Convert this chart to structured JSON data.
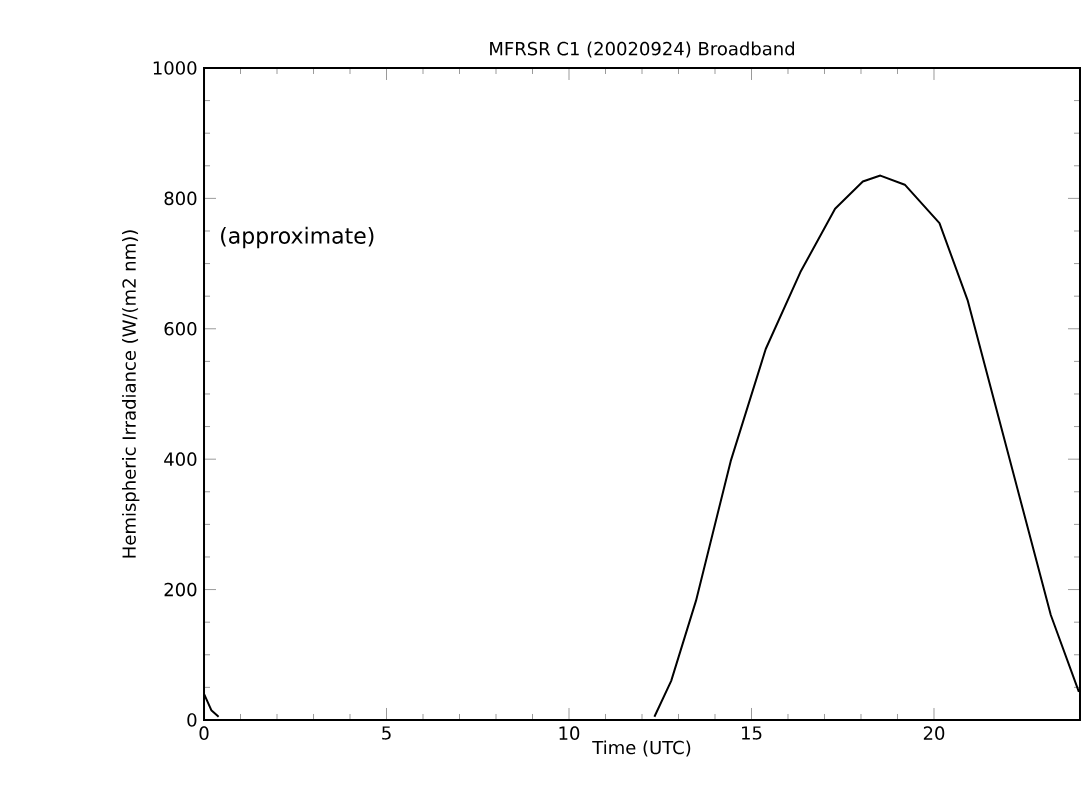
{
  "chart_data": {
    "type": "line",
    "title": "MFRSR C1 (20020924) Broadband",
    "xlabel": "Time (UTC)",
    "ylabel": "Hemispheric Irradiance (W/(m2 nm))",
    "annotations": [
      "(approximate)"
    ],
    "series": [
      {
        "color": "#000000",
        "x": [
          0,
          0.2,
          0.4,
          6,
          12.34,
          12.8,
          13.48,
          14.43,
          15.39,
          16.34,
          17.29,
          18.05,
          18.53,
          19.2,
          20.15,
          20.92,
          21.68,
          22.44,
          23.2,
          23.97
        ],
        "values": [
          40,
          15,
          5,
          null,
          5,
          60,
          183,
          397,
          569,
          687,
          784,
          826,
          835,
          821,
          762,
          644,
          483,
          322,
          161,
          43
        ]
      }
    ],
    "xlim": [
      0,
      24
    ],
    "ylim": [
      0,
      1000
    ],
    "xticks": [
      0,
      5,
      10,
      15,
      20
    ],
    "yticks": [
      0,
      200,
      400,
      600,
      800,
      1000
    ],
    "grid": false,
    "line_style": "solid",
    "marker": "none"
  }
}
